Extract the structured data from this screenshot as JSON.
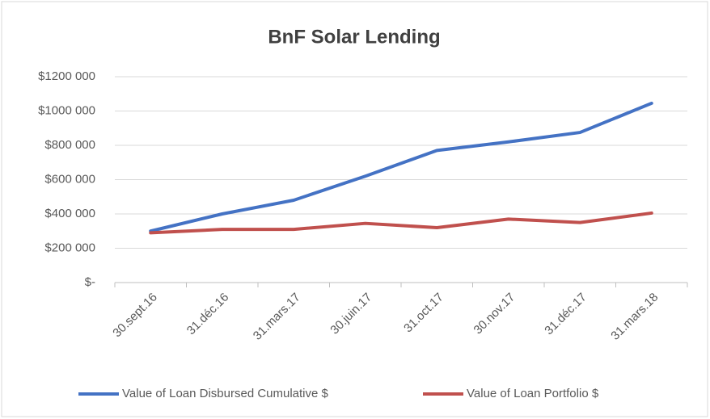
{
  "chart_data": {
    "type": "line",
    "title": "BnF Solar Lending",
    "categories": [
      "30.sept.16",
      "31.déc.16",
      "31.mars.17",
      "30.juin.17",
      "31.oct.17",
      "30.nov.17",
      "31.déc.17",
      "31.mars.18"
    ],
    "series": [
      {
        "name": "Value of Loan Disbursed Cumulative $",
        "color": "#4472c4",
        "values": [
          300000,
          400000,
          480000,
          620000,
          770000,
          820000,
          875000,
          1045000
        ]
      },
      {
        "name": "Value of Loan Portfolio $",
        "color": "#c0504d",
        "values": [
          290000,
          310000,
          310000,
          345000,
          320000,
          370000,
          350000,
          405000
        ]
      }
    ],
    "ylim": [
      0,
      1200000
    ],
    "yticks": [
      {
        "value": 0,
        "label": "$-"
      },
      {
        "value": 200000,
        "label": "$200 000"
      },
      {
        "value": 400000,
        "label": "$400 000"
      },
      {
        "value": 600000,
        "label": "$600 000"
      },
      {
        "value": 800000,
        "label": "$800 000"
      },
      {
        "value": 1000000,
        "label": "$1000 000"
      },
      {
        "value": 1200000,
        "label": "$1200 000"
      }
    ],
    "grid": true,
    "legend": "bottom"
  }
}
